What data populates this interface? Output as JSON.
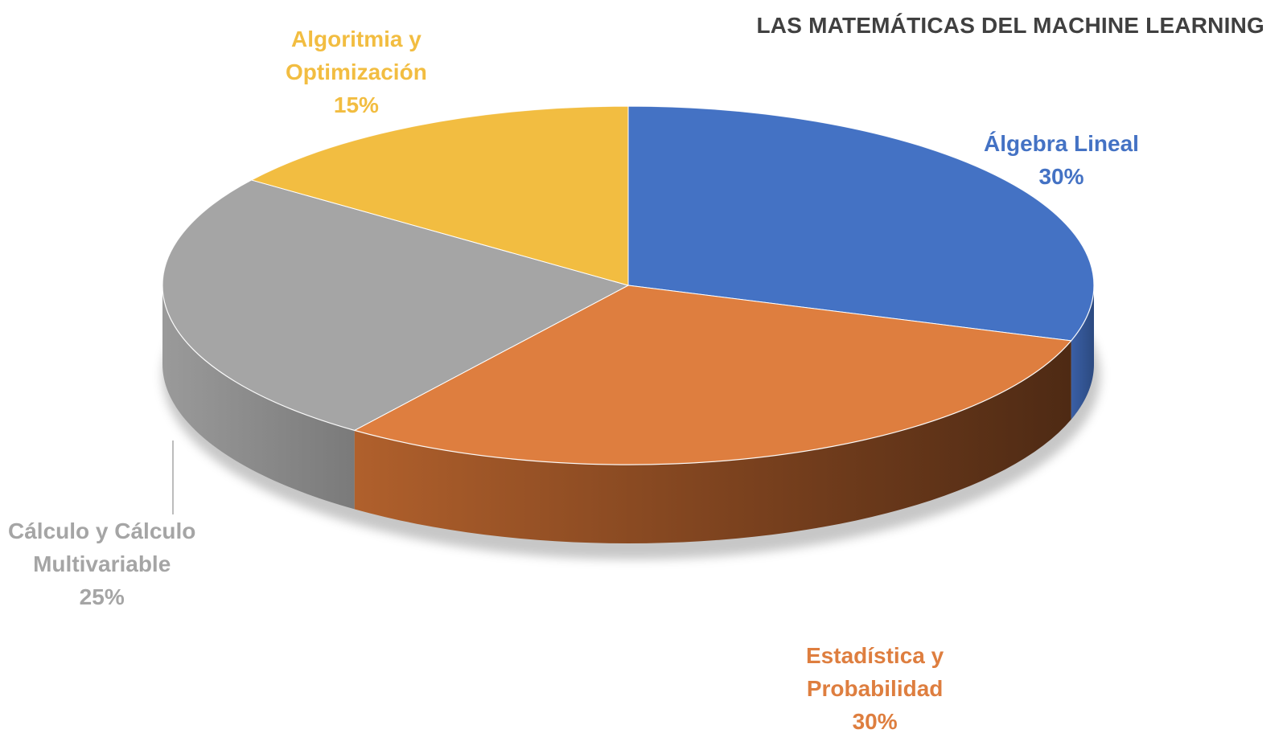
{
  "chart_data": {
    "type": "pie",
    "title": "LAS MATEMÁTICAS DEL MACHINE LEARNING",
    "slices": [
      {
        "name": "Álgebra Lineal",
        "label_lines": [
          "Álgebra Lineal"
        ],
        "value": 30,
        "value_label": "30%",
        "color": "#4472C4"
      },
      {
        "name": "Estadística y Probabilidad",
        "label_lines": [
          "Estadística y",
          "Probabilidad"
        ],
        "value": 30,
        "value_label": "30%",
        "color": "#DE7E3F"
      },
      {
        "name": "Cálculo y Cálculo Multivariable",
        "label_lines": [
          "Cálculo y Cálculo",
          "Multivariable"
        ],
        "value": 25,
        "value_label": "25%",
        "color": "#A5A5A5"
      },
      {
        "name": "Algoritmia y Optimización",
        "label_lines": [
          "Algoritmia y",
          "Optimización"
        ],
        "value": 15,
        "value_label": "15%",
        "color": "#F2BD41"
      }
    ],
    "start": "12 o'clock",
    "direction": "clockwise",
    "style": "3d"
  }
}
